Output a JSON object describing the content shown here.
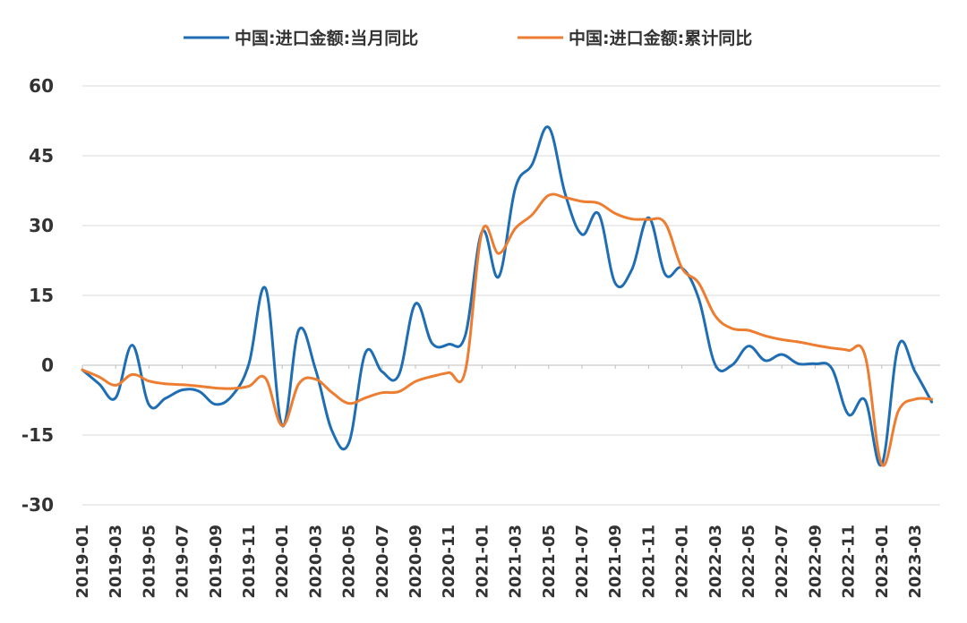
{
  "chart_data": {
    "type": "line",
    "title": "",
    "xlabel": "",
    "ylabel": "",
    "ylim": [
      -30,
      60
    ],
    "yticks": [
      "60",
      "45",
      "30",
      "15",
      "0",
      "-15",
      "-30"
    ],
    "grid": "horizontal",
    "legend_position": "top-center",
    "x": [
      "2019-01",
      "2019-02",
      "2019-03",
      "2019-04",
      "2019-05",
      "2019-06",
      "2019-07",
      "2019-08",
      "2019-09",
      "2019-10",
      "2019-11",
      "2019-12",
      "2020-01",
      "2020-02",
      "2020-03",
      "2020-04",
      "2020-05",
      "2020-06",
      "2020-07",
      "2020-08",
      "2020-09",
      "2020-10",
      "2020-11",
      "2020-12",
      "2021-01",
      "2021-02",
      "2021-03",
      "2021-04",
      "2021-05",
      "2021-06",
      "2021-07",
      "2021-08",
      "2021-09",
      "2021-10",
      "2021-11",
      "2021-12",
      "2022-01",
      "2022-02",
      "2022-03",
      "2022-04",
      "2022-05",
      "2022-06",
      "2022-07",
      "2022-08",
      "2022-09",
      "2022-10",
      "2022-11",
      "2022-12",
      "2023-01",
      "2023-02",
      "2023-03",
      "2023-04"
    ],
    "x_tick_labels": [
      "2019-01",
      "2019-03",
      "2019-05",
      "2019-07",
      "2019-09",
      "2019-11",
      "2020-01",
      "2020-03",
      "2020-05",
      "2020-07",
      "2020-09",
      "2020-11",
      "2021-01",
      "2021-03",
      "2021-05",
      "2021-07",
      "2021-09",
      "2021-11",
      "2022-01",
      "2022-03",
      "2022-05",
      "2022-07",
      "2022-09",
      "2022-11",
      "2023-01",
      "2023-03"
    ],
    "series": [
      {
        "name": "中国:进口金额:当月同比",
        "color": "#1f6eb4",
        "values": [
          -1.0,
          -4.0,
          -7.0,
          4.3,
          -8.5,
          -7.1,
          -5.3,
          -5.6,
          -8.4,
          -6.5,
          0.3,
          16.5,
          -13.0,
          7.6,
          -0.9,
          -14.2,
          -16.7,
          2.7,
          -1.4,
          -2.1,
          13.2,
          4.7,
          4.5,
          6.5,
          28.7,
          19.0,
          38.1,
          43.1,
          51.1,
          36.7,
          28.1,
          32.5,
          17.6,
          20.6,
          31.7,
          19.5,
          20.9,
          14.4,
          0.1,
          0.0,
          4.1,
          1.0,
          2.3,
          0.3,
          0.3,
          -0.7,
          -10.6,
          -7.5,
          -21.3,
          4.2,
          -1.4,
          -7.9
        ]
      },
      {
        "name": "中国:进口金额:累计同比",
        "color": "#ed7d31",
        "values": [
          -1.0,
          -2.5,
          -4.3,
          -2.0,
          -3.4,
          -4.0,
          -4.2,
          -4.5,
          -4.9,
          -5.0,
          -4.5,
          -2.8,
          -13.0,
          -4.0,
          -3.0,
          -5.9,
          -8.2,
          -7.0,
          -5.9,
          -5.7,
          -3.5,
          -2.4,
          -1.6,
          -1.1,
          28.7,
          24.0,
          29.4,
          32.3,
          36.5,
          36.0,
          35.2,
          34.8,
          32.6,
          31.4,
          31.3,
          30.5,
          20.9,
          17.7,
          10.6,
          7.9,
          7.5,
          6.3,
          5.5,
          5.0,
          4.3,
          3.7,
          3.2,
          2.0,
          -21.3,
          -9.8,
          -7.3,
          -7.3
        ]
      }
    ]
  }
}
